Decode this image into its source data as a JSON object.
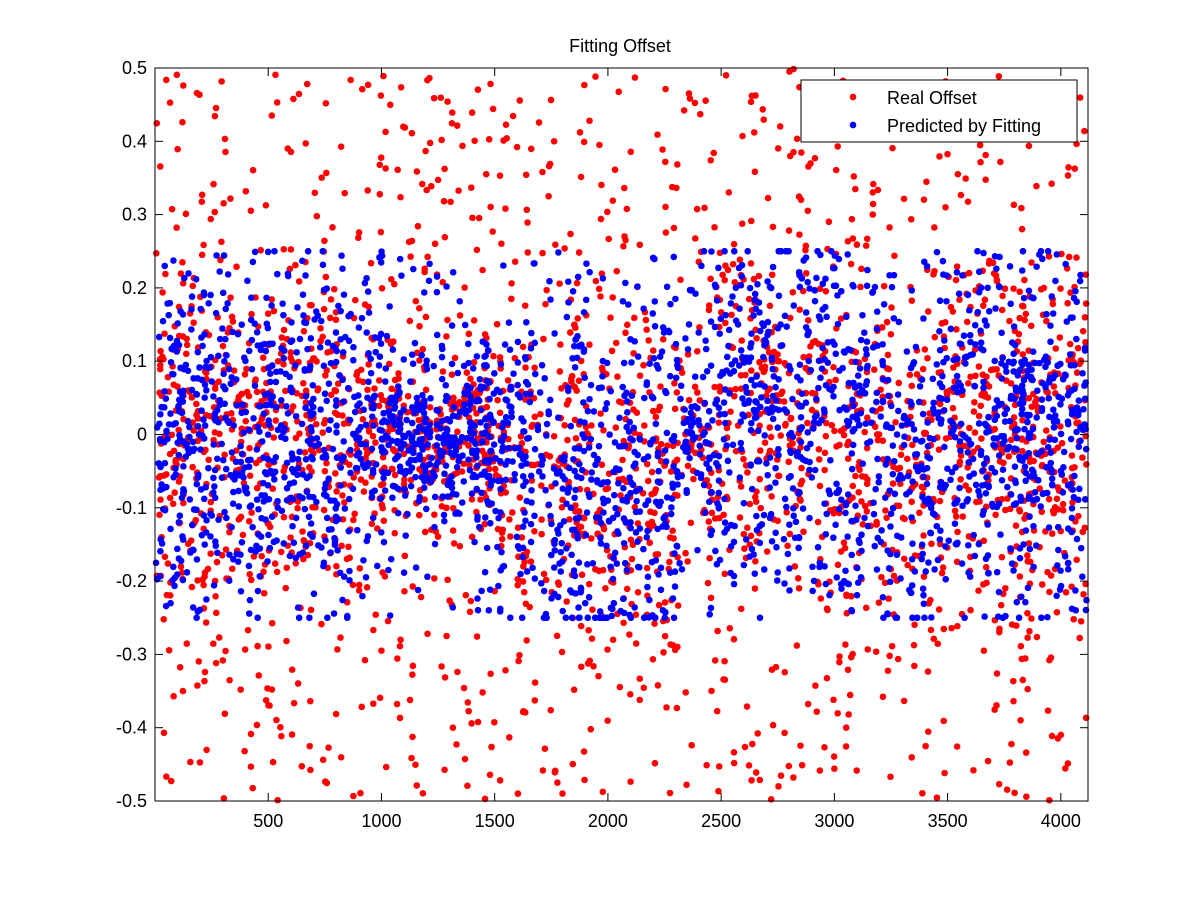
{
  "chart_data": {
    "type": "scatter",
    "title": "Fitting Offset",
    "xlabel": "",
    "ylabel": "",
    "xlim": [
      0,
      4120
    ],
    "ylim": [
      -0.5,
      0.5
    ],
    "xticks": [
      500,
      1000,
      1500,
      2000,
      2500,
      3000,
      3500,
      4000
    ],
    "xtick_labels": [
      "500",
      "1000",
      "1500",
      "2000",
      "2500",
      "3000",
      "3500",
      "4000"
    ],
    "yticks": [
      -0.5,
      -0.4,
      -0.3,
      -0.2,
      -0.1,
      0,
      0.1,
      0.2,
      0.3,
      0.4,
      0.5
    ],
    "ytick_labels": [
      "-0.5",
      "-0.4",
      "-0.3",
      "-0.2",
      "-0.1",
      "0",
      "0.1",
      "0.2",
      "0.3",
      "0.4",
      "0.5"
    ],
    "grid": false,
    "legend_position": "top-right",
    "series": [
      {
        "name": "Real Offset",
        "color": "#ff0000",
        "marker": "asterisk",
        "n_points": 4096
      },
      {
        "name": "Predicted by Fitting",
        "color": "#0000ff",
        "marker": "asterisk",
        "n_points": 4096
      }
    ],
    "note": "Point values approximated from visible clusters; real offset spans the full [-0.5, 0.5] range, predicted values fall mostly within [-0.25, 0.25] with a dense band near 0."
  }
}
